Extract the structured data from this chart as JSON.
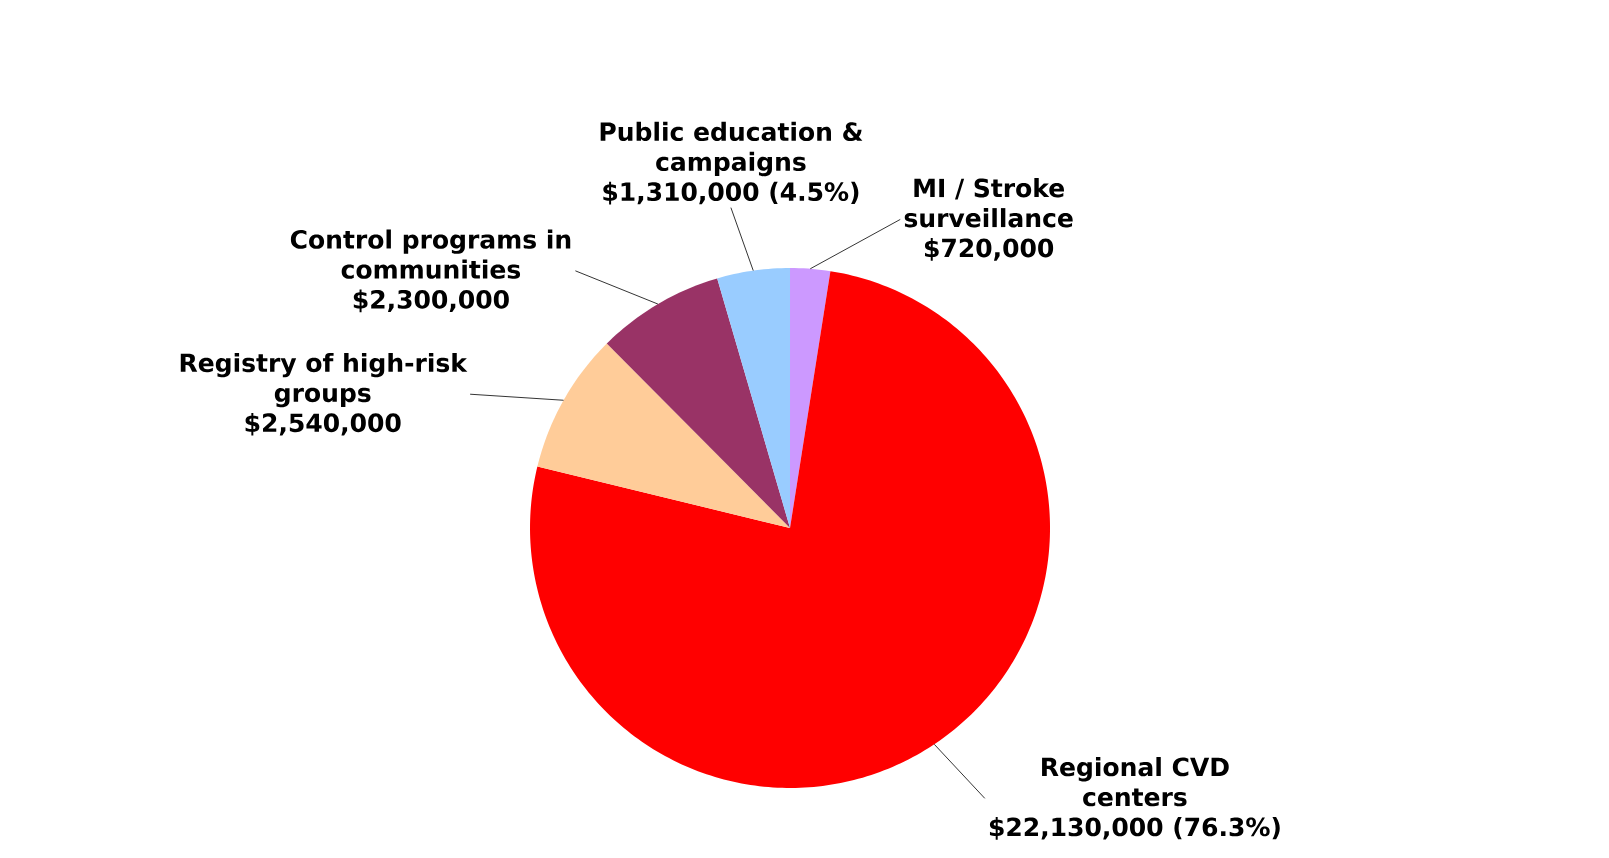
{
  "chart_data": {
    "type": "pie",
    "categories": [
      "MI / Stroke surveillance",
      "Regional CVD centers",
      "Registry of high-risk groups",
      "Control programs in communities",
      "Public education & campaigns"
    ],
    "values": [
      720000,
      22130000,
      2540000,
      2300000,
      1310000
    ],
    "value_labels": [
      "$720,000",
      "$22,130,000 (76.3%)",
      "$2,540,000",
      "$2,300,000",
      "$1,310,000 (4.5%)"
    ],
    "colors": [
      "#cc99ff",
      "#ff0000",
      "#ffcc99",
      "#993366",
      "#99ccff"
    ]
  }
}
